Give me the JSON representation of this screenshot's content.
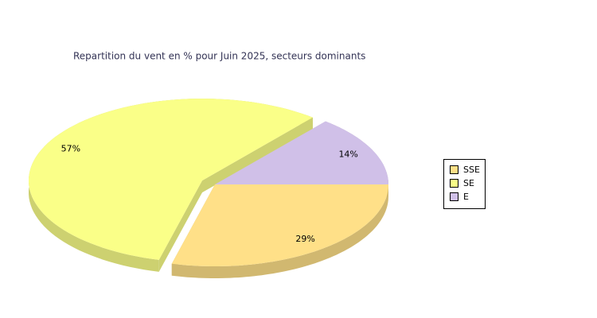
{
  "chart_data": {
    "type": "pie3d",
    "title": "Repartition du vent en % pour Juin 2025, secteurs dominants",
    "categories": [
      "SSE",
      "SE",
      "E"
    ],
    "values": [
      29,
      57,
      14
    ],
    "value_labels": [
      "29%",
      "57%",
      "14%"
    ],
    "colors": [
      "#ffe088",
      "#faff88",
      "#d0c0e8"
    ],
    "exploded": [
      false,
      true,
      false
    ],
    "legend": "right"
  }
}
